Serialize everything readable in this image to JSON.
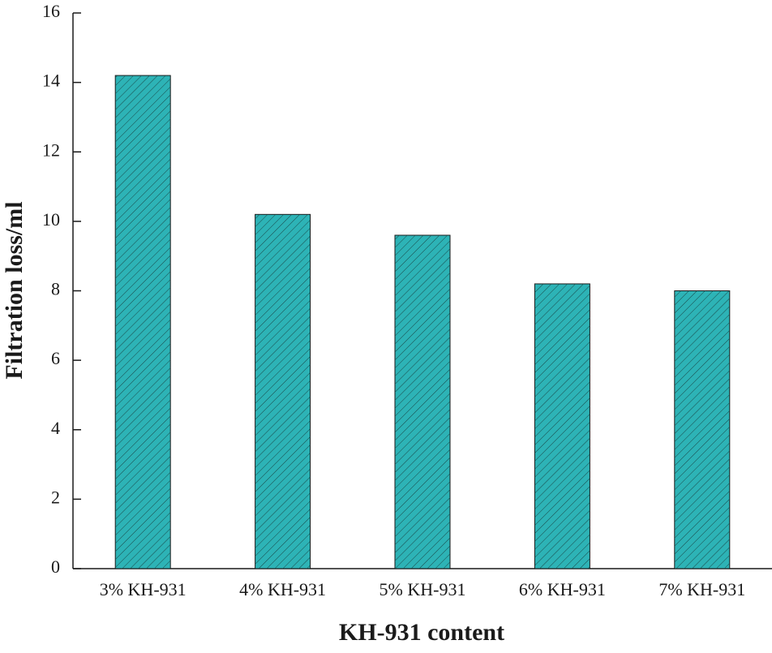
{
  "chart_data": {
    "type": "bar",
    "x_label": "KH-931 content",
    "y_label": "Filtration loss/ml",
    "categories": [
      "3% KH-931",
      "4% KH-931",
      "5% KH-931",
      "6% KH-931",
      "7% KH-931"
    ],
    "values": [
      14.2,
      10.2,
      9.6,
      8.2,
      8.0
    ],
    "color": "#2db3b6",
    "ylim": [
      0,
      16
    ],
    "yticks": [
      0,
      2,
      4,
      6,
      8,
      10,
      12,
      14,
      16
    ]
  }
}
